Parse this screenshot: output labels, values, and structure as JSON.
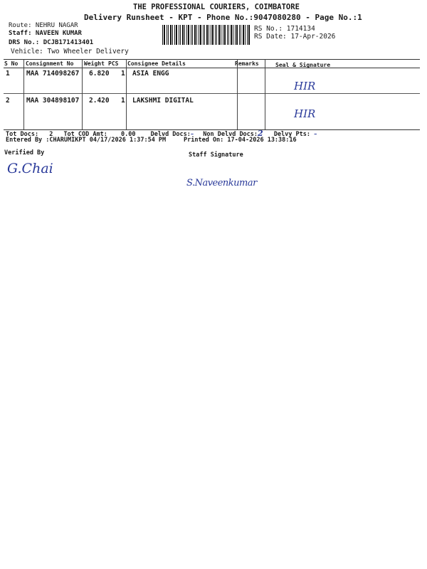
{
  "header": {
    "company": "THE PROFESSIONAL COURIERS, COIMBATORE",
    "subtitle": "Delivery Runsheet - KPT - Phone No.:9047080280 - Page No.:1",
    "route": "Route: NEHRU NAGAR",
    "staff": "Staff: NAVEEN KUMAR",
    "drs_no": "DRS No.: DCJB171413401",
    "vehicle": "Vehicle: Two Wheeler Delivery",
    "rs_no": "RS No.: 1714134",
    "rs_date": "RS Date: 17-Apr-2026"
  },
  "table": {
    "columns": [
      "S No",
      "Consignment No",
      "Weight",
      "PCS",
      "Consignee Details",
      "Remarks",
      "Seal & Signature"
    ],
    "rows": [
      {
        "sno": "1",
        "consignment": "MAA 714098267",
        "weight": "6.820",
        "pcs": "1",
        "consignee": "ASIA ENGG",
        "remarks": "",
        "seal": "HIR"
      },
      {
        "sno": "2",
        "consignment": "MAA 304898107",
        "weight": "2.420",
        "pcs": "1",
        "consignee": "LAKSHMI DIGITAL",
        "remarks": "",
        "seal": "HIR"
      }
    ]
  },
  "totals": {
    "tot_docs_label": "Tot Docs:",
    "tot_docs": "2",
    "tot_cod_label": "Tot COD Amt:",
    "tot_cod": "0.00",
    "delvd_docs_label": "Delvd Docs:",
    "delvd_docs": "–",
    "non_delvd_label": "Non Delvd Docs:",
    "non_delvd": "2",
    "delvy_pts_label": "Delvy Pts:",
    "delvy_pts": "–"
  },
  "footer": {
    "entered_by": "Entered By :CHARUMIKPT 04/17/2026 1:37:54 PM",
    "printed_on": "Printed On: 17-04-2026 13:38:16",
    "verified_by": "Verified By",
    "staff_signature": "Staff Signature",
    "verifier_signature": "G.Chai",
    "staff_signature_handwritten": "S.Naveenkumar"
  },
  "colors": {
    "ink": "#1a1a1a",
    "pen": "#2a3a9a"
  }
}
